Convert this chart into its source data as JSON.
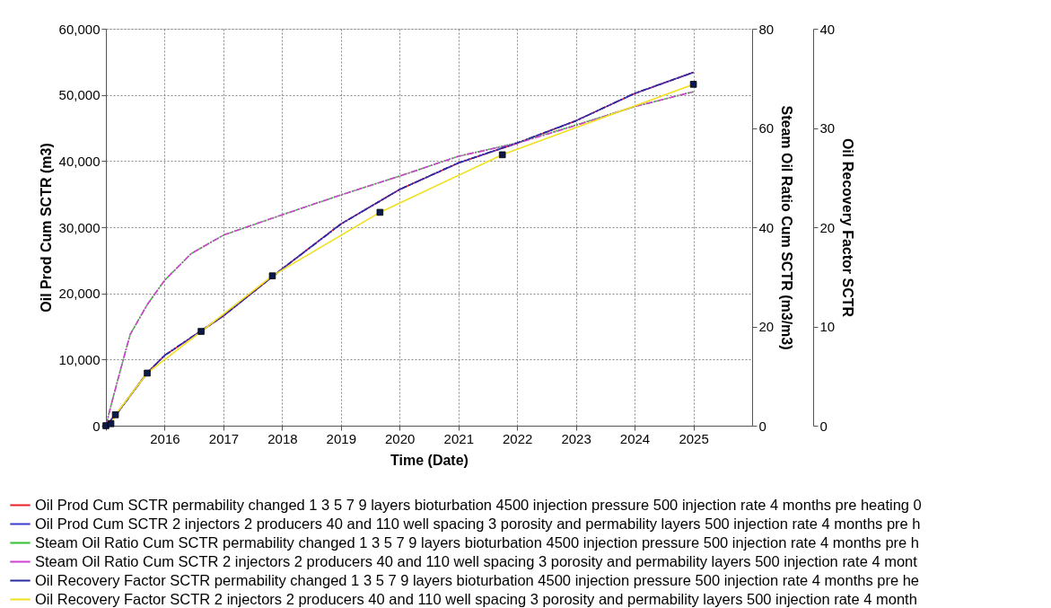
{
  "chart_data": {
    "type": "line",
    "xlabel": "Time (Date)",
    "ylabel": "Oil Prod Cum SCTR (m3)",
    "y2label": "Steam Oil Ratio Cum SCTR (m3/m3)",
    "y3label": "Oil Recovery Factor SCTR",
    "xlim": [
      "2015-01-01",
      "2026-01-01"
    ],
    "xticks": [
      {
        "value": "2015-01-01",
        "label": null
      },
      "2016",
      "2017",
      "2018",
      "2019",
      "2020",
      "2021",
      "2022",
      "2023",
      "2024",
      "2025"
    ],
    "ylim": [
      0,
      60000
    ],
    "yticks": [
      0,
      {
        "value": 10000,
        "label": "10,000"
      },
      {
        "value": 20000,
        "label": "20,000"
      },
      {
        "value": 30000,
        "label": "30,000"
      },
      {
        "value": 40000,
        "label": "40,000"
      },
      {
        "value": 50000,
        "label": "50,000"
      },
      {
        "value": 60000,
        "label": "60,000"
      }
    ],
    "y2lim": [
      0,
      80
    ],
    "y2ticks": [
      0,
      20,
      40,
      60,
      80
    ],
    "y3lim": [
      0,
      40
    ],
    "y3ticks": [
      0,
      10,
      20,
      30,
      40
    ],
    "grid": true,
    "legend": "bottom",
    "series": [
      {
        "name": "Oil Prod Cum SCTR permability changed 1 3 5 7 9 layers bioturbation 4500 injection pressure 500 injection rate 4 months pre heating 0",
        "color": "#e8202a",
        "line_style": "solid",
        "axis": "y",
        "x": [
          "2015-01-01",
          "2015-03-15",
          "2015-09-15",
          "2016-01-01",
          "2017-01-01",
          "2018-01-01",
          "2019-01-01",
          "2020-01-01",
          "2021-01-01",
          "2022-01-01",
          "2023-01-01",
          "2024-01-01",
          "2025-01-01"
        ],
        "values": [
          0,
          2000,
          8000,
          10600,
          16600,
          23700,
          30500,
          35700,
          39700,
          42700,
          46100,
          50200,
          53400
        ]
      },
      {
        "name": "Oil Prod Cum SCTR 2 injectors 2 producers 40 and 110 well spacing 3 porosity and permability layers 500 injection rate 4 months pre h",
        "color": "#3a3ad0",
        "line_style": "dashed",
        "axis": "y",
        "x": [
          "2015-01-01",
          "2015-03-15",
          "2015-09-15",
          "2016-01-01",
          "2017-01-01",
          "2018-01-01",
          "2019-01-01",
          "2020-01-01",
          "2021-01-01",
          "2022-01-01",
          "2023-01-01",
          "2024-01-01",
          "2025-01-01"
        ],
        "values": [
          0,
          2000,
          8000,
          10600,
          16600,
          23700,
          30500,
          35700,
          39700,
          42700,
          46100,
          50200,
          53400
        ]
      },
      {
        "name": "Steam Oil Ratio Cum SCTR permability changed 1 3 5 7 9 layers bioturbation 4500 injection pressure 500 injection rate 4 months pre h",
        "color": "#30c030",
        "line_style": "dotted",
        "axis": "y2",
        "x": [
          "2015-01-01",
          "2015-02-01",
          "2015-04-01",
          "2015-06-01",
          "2015-09-15",
          "2016-01-01",
          "2016-06-15",
          "2017-01-01",
          "2018-01-01",
          "2019-01-01",
          "2020-01-01",
          "2021-01-01",
          "2022-01-01",
          "2023-01-01",
          "2024-01-01",
          "2025-01-01"
        ],
        "values": [
          0,
          4,
          11.2,
          18.4,
          24.4,
          29.3,
          34.7,
          38.4,
          42.5,
          46.5,
          50.3,
          54.3,
          57,
          60.6,
          64.3,
          67.3
        ]
      },
      {
        "name": "Steam Oil Ratio Cum SCTR 2 injectors 2 producers 40 and 110 well spacing 3 porosity and permability layers 500 injection rate 4 mont",
        "color": "#d040d0",
        "line_style": "dashdot",
        "axis": "y2",
        "x": [
          "2015-01-01",
          "2015-02-01",
          "2015-04-01",
          "2015-06-01",
          "2015-09-15",
          "2016-01-01",
          "2016-06-15",
          "2017-01-01",
          "2018-01-01",
          "2019-01-01",
          "2020-01-01",
          "2021-01-01",
          "2022-01-01",
          "2023-01-01",
          "2024-01-01",
          "2025-01-01"
        ],
        "values": [
          0,
          4,
          11.2,
          18.4,
          24.4,
          29.3,
          34.7,
          38.4,
          42.5,
          46.5,
          50.3,
          54.3,
          56.9,
          60.5,
          64.3,
          67.3
        ]
      },
      {
        "name": "Oil Recovery Factor SCTR permability changed 1 3 5 7 9 layers bioturbation 4500 injection pressure 500 injection rate 4 months pre he",
        "color": "#2a2aa0",
        "line_style": "dashdotdot",
        "axis": "y3",
        "x": [
          "2015-01-01",
          "2015-03-15",
          "2015-09-15",
          "2016-01-01",
          "2017-01-01",
          "2018-01-01",
          "2019-01-01",
          "2020-01-01",
          "2021-01-01",
          "2022-01-01",
          "2023-01-01",
          "2024-01-01",
          "2025-01-01"
        ],
        "values": [
          0,
          1.3,
          5.3,
          7.1,
          11.1,
          15.8,
          20.3,
          23.8,
          26.5,
          28.5,
          30.7,
          33.5,
          35.6
        ]
      },
      {
        "name": "Oil Recovery Factor SCTR 2 injectors 2 producers 40 and 110 well spacing 3 porosity and permability layers 500 injection rate 4 month",
        "color": "#f0e020",
        "line_style": "solid",
        "axis": "y3",
        "marker": "square",
        "x": [
          "2015-01-01",
          "2015-02-01",
          "2015-03-01",
          "2015-09-15",
          "2016-08-15",
          "2017-11-01",
          "2019-09-01",
          "2021-10-01",
          "2025-01-01"
        ],
        "values": [
          0,
          0.2,
          1.1,
          5.3,
          9.5,
          15.1,
          21.5,
          27.3,
          34.4
        ]
      }
    ]
  }
}
